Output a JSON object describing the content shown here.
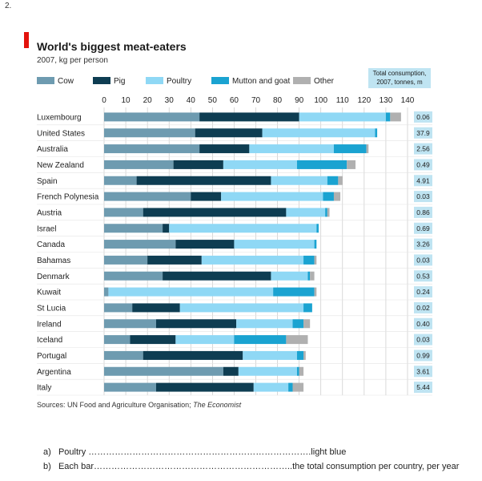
{
  "question_number": "2.",
  "chart_data": {
    "type": "bar",
    "orientation": "horizontal",
    "stacked": true,
    "title": "World's biggest meat-eaters",
    "subtitle": "2007, kg per person",
    "legend": [
      {
        "name": "Cow",
        "color": "#6e9bb0"
      },
      {
        "name": "Pig",
        "color": "#0e3d52"
      },
      {
        "name": "Poultry",
        "color": "#8fd8f5"
      },
      {
        "name": "Mutton and goat",
        "color": "#1aa3d1"
      },
      {
        "name": "Other",
        "color": "#b0b0b0"
      }
    ],
    "legend_placement": "top-left",
    "xlim": [
      0,
      140
    ],
    "xticks": [
      "0",
      "10",
      "20",
      "30",
      "40",
      "50",
      "60",
      "70",
      "80",
      "90",
      "100",
      "110",
      "120",
      "130",
      "140"
    ],
    "categories": [
      "Luxembourg",
      "United States",
      "Australia",
      "New Zealand",
      "Spain",
      "French Polynesia",
      "Austria",
      "Israel",
      "Canada",
      "Bahamas",
      "Denmark",
      "Kuwait",
      "St Lucia",
      "Ireland",
      "Iceland",
      "Portugal",
      "Argentina",
      "Italy"
    ],
    "series": [
      {
        "name": "Cow",
        "values": [
          44,
          42,
          44,
          32,
          15,
          40,
          18,
          27,
          33,
          20,
          27,
          2,
          13,
          24,
          12,
          18,
          55,
          24
        ]
      },
      {
        "name": "Pig",
        "values": [
          46,
          31,
          23,
          23,
          62,
          14,
          66,
          3,
          27,
          25,
          50,
          0,
          22,
          37,
          21,
          46,
          7,
          45
        ]
      },
      {
        "name": "Poultry",
        "values": [
          40,
          52,
          39,
          34,
          26,
          47,
          18,
          68,
          37,
          47,
          17,
          76,
          57,
          26,
          27,
          25,
          27,
          16
        ]
      },
      {
        "name": "Mutton and goat",
        "values": [
          2,
          1,
          15,
          23,
          5,
          5,
          1,
          1,
          1,
          5,
          1,
          19,
          4,
          5,
          24,
          3,
          1,
          2
        ]
      },
      {
        "name": "Other",
        "values": [
          5,
          0,
          1,
          4,
          2,
          3,
          1,
          0,
          0,
          1,
          2,
          1,
          0,
          3,
          10,
          1,
          2,
          5
        ]
      }
    ],
    "total_consumption_header": [
      "Total consumption,",
      "2007, tonnes, m"
    ],
    "total_consumption": [
      "0.06",
      "37.9",
      "2.56",
      "0.49",
      "4.91",
      "0.03",
      "0.86",
      "0.69",
      "3.26",
      "0.03",
      "0.53",
      "0.24",
      "0.02",
      "0.40",
      "0.03",
      "0.99",
      "3.61",
      "5.44"
    ],
    "source": "Sources: UN Food and Agriculture Organisation;",
    "source_italic": "The Economist"
  },
  "questions": [
    {
      "prefix": "a)",
      "text": "Poultry ………………………………………………………………….light  blue"
    },
    {
      "prefix": "b)",
      "text": "Each bar…………………………………………………………..the  total consumption per country, per year"
    }
  ]
}
